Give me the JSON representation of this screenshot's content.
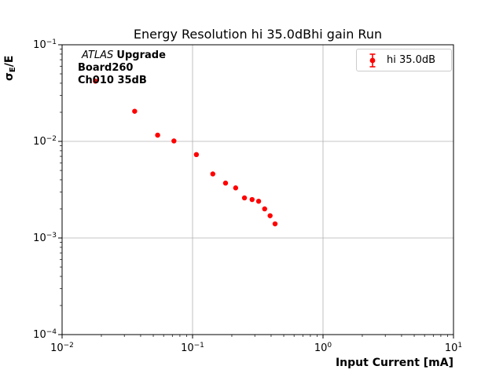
{
  "chart_data": {
    "type": "scatter",
    "title": "Energy Resolution hi 35.0dBhi gain Run",
    "xlabel": "Input Current [mA]",
    "ylabel": "σ_E/E",
    "ylabel_parts": {
      "sigma": "σ",
      "sub": "E",
      "rest": "/E"
    },
    "xscale": "log",
    "yscale": "log",
    "xlim": [
      0.01,
      10
    ],
    "ylim": [
      0.0001,
      0.1
    ],
    "grid": true,
    "legend_position": "upper right",
    "x_tick_exponents": [
      -2,
      -1,
      0,
      1
    ],
    "y_tick_exponents": [
      -1,
      -2,
      -3,
      -4
    ],
    "series": [
      {
        "name": "hi 35.0dB",
        "color": "#ff0000",
        "marker": "errorbar-circle",
        "x": [
          0.018,
          0.036,
          0.054,
          0.072,
          0.107,
          0.143,
          0.179,
          0.214,
          0.25,
          0.286,
          0.321,
          0.357,
          0.393,
          0.429
        ],
        "y": [
          0.042,
          0.0205,
          0.0116,
          0.0101,
          0.0073,
          0.0046,
          0.0037,
          0.0033,
          0.0026,
          0.0025,
          0.0024,
          0.002,
          0.0017,
          0.0014
        ]
      }
    ],
    "annotation": {
      "line1_italic": "ATLAS",
      "line1_bold": "Upgrade",
      "line2": "Board260",
      "line3": "Ch010 35dB"
    },
    "colors": {
      "marker": "#ff0000",
      "grid": "#b0b0b0",
      "spine": "#000000",
      "legend_border": "#cccccc"
    }
  }
}
